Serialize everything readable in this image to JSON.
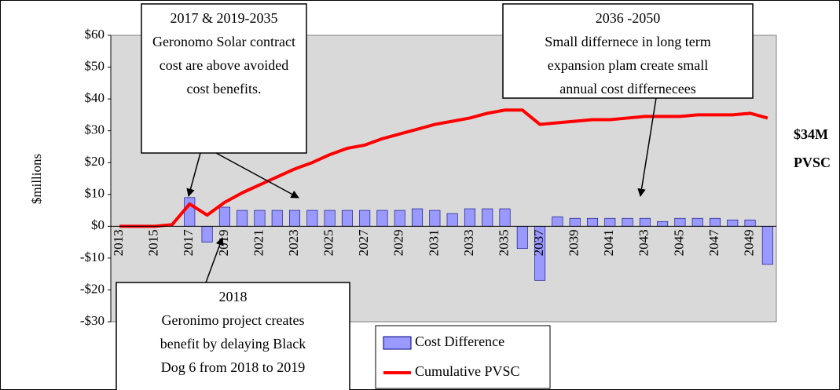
{
  "chart_data": {
    "type": "bar",
    "y_label": "$millions",
    "categories": [
      "2013",
      null,
      "2015",
      null,
      "2017",
      null,
      "2019",
      null,
      "2021",
      null,
      "2023",
      null,
      "2025",
      null,
      "2027",
      null,
      "2029",
      null,
      "2031",
      null,
      "2033",
      null,
      "2035",
      null,
      "2037",
      null,
      "2039",
      null,
      "2041",
      null,
      "2043",
      null,
      "2045",
      null,
      "2047",
      null,
      "2049",
      null
    ],
    "series": [
      {
        "name": "Cost Difference",
        "type": "bar",
        "color": "#9999ff",
        "values": [
          0,
          0,
          0,
          0,
          9,
          -5,
          6,
          5,
          5,
          5,
          5,
          5,
          5,
          5,
          5,
          5,
          5,
          5.5,
          5,
          4,
          5.5,
          5.5,
          5.5,
          -7,
          -17,
          3,
          2.5,
          2.5,
          2.5,
          2.5,
          2.5,
          1.5,
          2.5,
          2.5,
          2.5,
          2,
          2,
          -12
        ]
      },
      {
        "name": "Cumulative PVSC",
        "type": "line",
        "color": "#ff0000",
        "values": [
          0,
          0,
          0,
          0.5,
          7,
          3.5,
          7.5,
          10.5,
          13,
          15.5,
          18,
          20,
          22.5,
          24.5,
          25.5,
          27.5,
          29,
          30.5,
          32,
          33,
          34,
          35.5,
          36.5,
          36.5,
          32,
          32.5,
          33,
          33.5,
          33.5,
          34,
          34.5,
          34.5,
          34.5,
          35,
          35,
          35,
          35.5,
          34
        ]
      }
    ],
    "ylim": [
      -30,
      60
    ],
    "yticks": [
      {
        "value": -30,
        "label": "-$30"
      },
      {
        "value": -20,
        "label": "-$20"
      },
      {
        "value": -10,
        "label": "-$10"
      },
      {
        "value": 0,
        "label": "$0"
      },
      {
        "value": 10,
        "label": "$10"
      },
      {
        "value": 20,
        "label": "$20"
      },
      {
        "value": 30,
        "label": "$30"
      },
      {
        "value": 40,
        "label": "$40"
      },
      {
        "value": 50,
        "label": "$50"
      },
      {
        "value": 60,
        "label": "$60"
      }
    ],
    "grid": false,
    "annotations": [
      {
        "lines": [
          "2017 & 2019-2035",
          "Geronomo Solar contract",
          "cost are above avoided",
          "cost benefits."
        ]
      },
      {
        "lines": [
          "2036 -2050",
          "Small differnece in long term",
          "expansion plam create small",
          "annual cost differnecees"
        ]
      },
      {
        "lines": [
          "2018",
          "Geronimo project creates",
          "benefit by delaying Black",
          "Dog 6 from 2018 to 2019"
        ]
      }
    ],
    "end_label": [
      "$34M",
      "PVSC"
    ]
  }
}
